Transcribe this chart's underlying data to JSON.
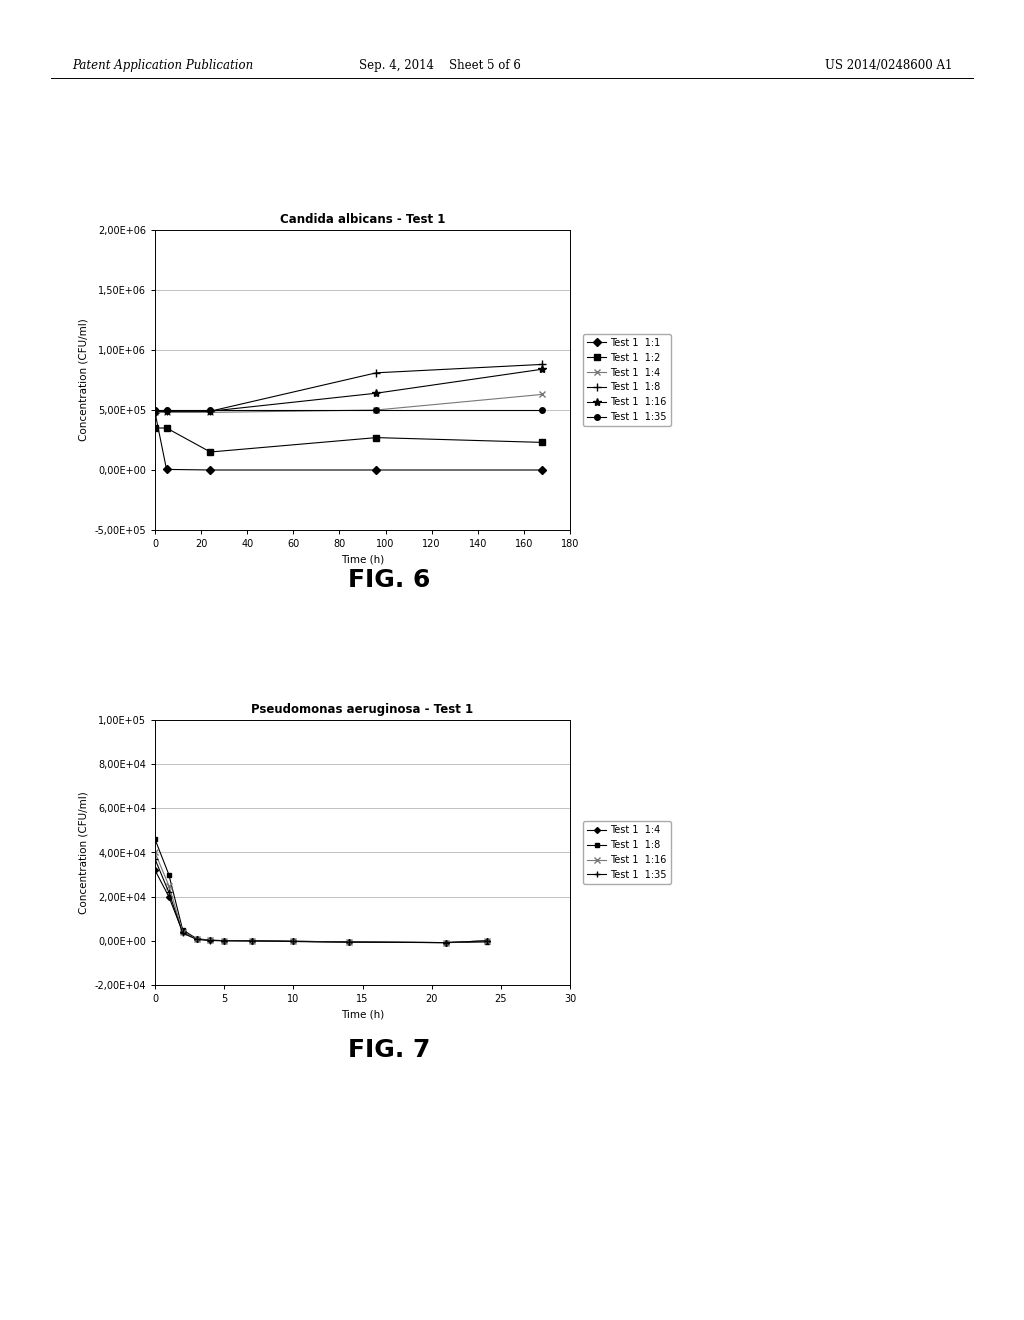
{
  "fig6": {
    "title": "Candida albicans - Test 1",
    "xlabel": "Time (h)",
    "ylabel": "Concentration (CFU/ml)",
    "xlim": [
      0,
      180
    ],
    "ylim": [
      -500000,
      2000000
    ],
    "xticks": [
      0,
      20,
      40,
      60,
      80,
      100,
      120,
      140,
      160,
      180
    ],
    "yticks": [
      -500000,
      0,
      500000,
      1000000,
      1500000,
      2000000
    ],
    "ytick_labels": [
      "-5,00E+05",
      "0,00E+00",
      "5,00E+05",
      "1,00E+06",
      "1,50E+06",
      "2,00E+06"
    ],
    "series": [
      {
        "label": "Test 1  1:1",
        "x": [
          0,
          5,
          24,
          96,
          168
        ],
        "y": [
          480000,
          5000,
          0,
          0,
          0
        ],
        "marker": "D",
        "color": "#000000",
        "linestyle": "-",
        "markersize": 4
      },
      {
        "label": "Test 1  1:2",
        "x": [
          0,
          5,
          24,
          96,
          168
        ],
        "y": [
          350000,
          350000,
          150000,
          270000,
          230000
        ],
        "marker": "s",
        "color": "#000000",
        "linestyle": "-",
        "markersize": 4
      },
      {
        "label": "Test 1  1:4",
        "x": [
          0,
          5,
          24,
          96,
          168
        ],
        "y": [
          480000,
          480000,
          480000,
          500000,
          630000
        ],
        "marker": "x",
        "color": "#777777",
        "linestyle": "-",
        "markersize": 5
      },
      {
        "label": "Test 1  1:8",
        "x": [
          0,
          5,
          24,
          96,
          168
        ],
        "y": [
          490000,
          490000,
          490000,
          810000,
          880000
        ],
        "marker": "+",
        "color": "#000000",
        "linestyle": "-",
        "markersize": 6
      },
      {
        "label": "Test 1  1:16",
        "x": [
          0,
          5,
          24,
          96,
          168
        ],
        "y": [
          490000,
          490000,
          490000,
          640000,
          840000
        ],
        "marker": "*",
        "color": "#000000",
        "linestyle": "-",
        "markersize": 6
      },
      {
        "label": "Test 1  1:35",
        "x": [
          0,
          5,
          24,
          96,
          168
        ],
        "y": [
          500000,
          500000,
          500000,
          500000,
          500000
        ],
        "marker": "o",
        "color": "#000000",
        "linestyle": "-",
        "markersize": 4
      }
    ]
  },
  "fig7": {
    "title": "Pseudomonas aeruginosa - Test 1",
    "xlabel": "Time (h)",
    "ylabel": "Concentration (CFU/ml)",
    "xlim": [
      0,
      30
    ],
    "ylim": [
      -20000,
      100000
    ],
    "xticks": [
      0,
      5,
      10,
      15,
      20,
      25,
      30
    ],
    "yticks": [
      -20000,
      0,
      20000,
      40000,
      60000,
      80000,
      100000
    ],
    "ytick_labels": [
      "-2,00E+04",
      "0,00E+00",
      "2,00E+04",
      "4,00E+04",
      "6,00E+04",
      "8,00E+04",
      "1,00E+05"
    ],
    "series": [
      {
        "label": "Test 1  1:4",
        "x": [
          0,
          1,
          2,
          3,
          4,
          5,
          7,
          10,
          14,
          21,
          24
        ],
        "y": [
          32000,
          20000,
          4000,
          800,
          200,
          100,
          0,
          -200,
          -500,
          -800,
          0
        ],
        "marker": "D",
        "color": "#000000",
        "linestyle": "-",
        "markersize": 3
      },
      {
        "label": "Test 1  1:8",
        "x": [
          0,
          1,
          2,
          3,
          4,
          5,
          7,
          10,
          14,
          21,
          24
        ],
        "y": [
          46000,
          30000,
          5000,
          1000,
          300,
          100,
          0,
          -200,
          -500,
          -800,
          -500
        ],
        "marker": "s",
        "color": "#000000",
        "linestyle": "-",
        "markersize": 3
      },
      {
        "label": "Test 1  1:16",
        "x": [
          0,
          1,
          2,
          3,
          4,
          5,
          7,
          10,
          14,
          21,
          24
        ],
        "y": [
          40000,
          25000,
          4000,
          800,
          200,
          50,
          0,
          -300,
          -600,
          -800,
          0
        ],
        "marker": "x",
        "color": "#777777",
        "linestyle": "-",
        "markersize": 4
      },
      {
        "label": "Test 1  1:35",
        "x": [
          0,
          1,
          2,
          3,
          4,
          5,
          7,
          10,
          14,
          21,
          24
        ],
        "y": [
          37000,
          22000,
          3500,
          700,
          150,
          50,
          0,
          -300,
          -600,
          -800,
          0
        ],
        "marker": "+",
        "color": "#000000",
        "linestyle": "-",
        "markersize": 5
      }
    ]
  },
  "header_left": "Patent Application Publication",
  "header_center": "Sep. 4, 2014    Sheet 5 of 6",
  "header_right": "US 2014/0248600 A1",
  "fig6_label": "FIG. 6",
  "fig7_label": "FIG. 7",
  "background_color": "#ffffff",
  "text_color": "#000000",
  "title_fontsize": 8.5,
  "axis_fontsize": 7.5,
  "tick_fontsize": 7,
  "header_fontsize": 8.5,
  "legend_fontsize": 7,
  "fig_label_fontsize": 18
}
